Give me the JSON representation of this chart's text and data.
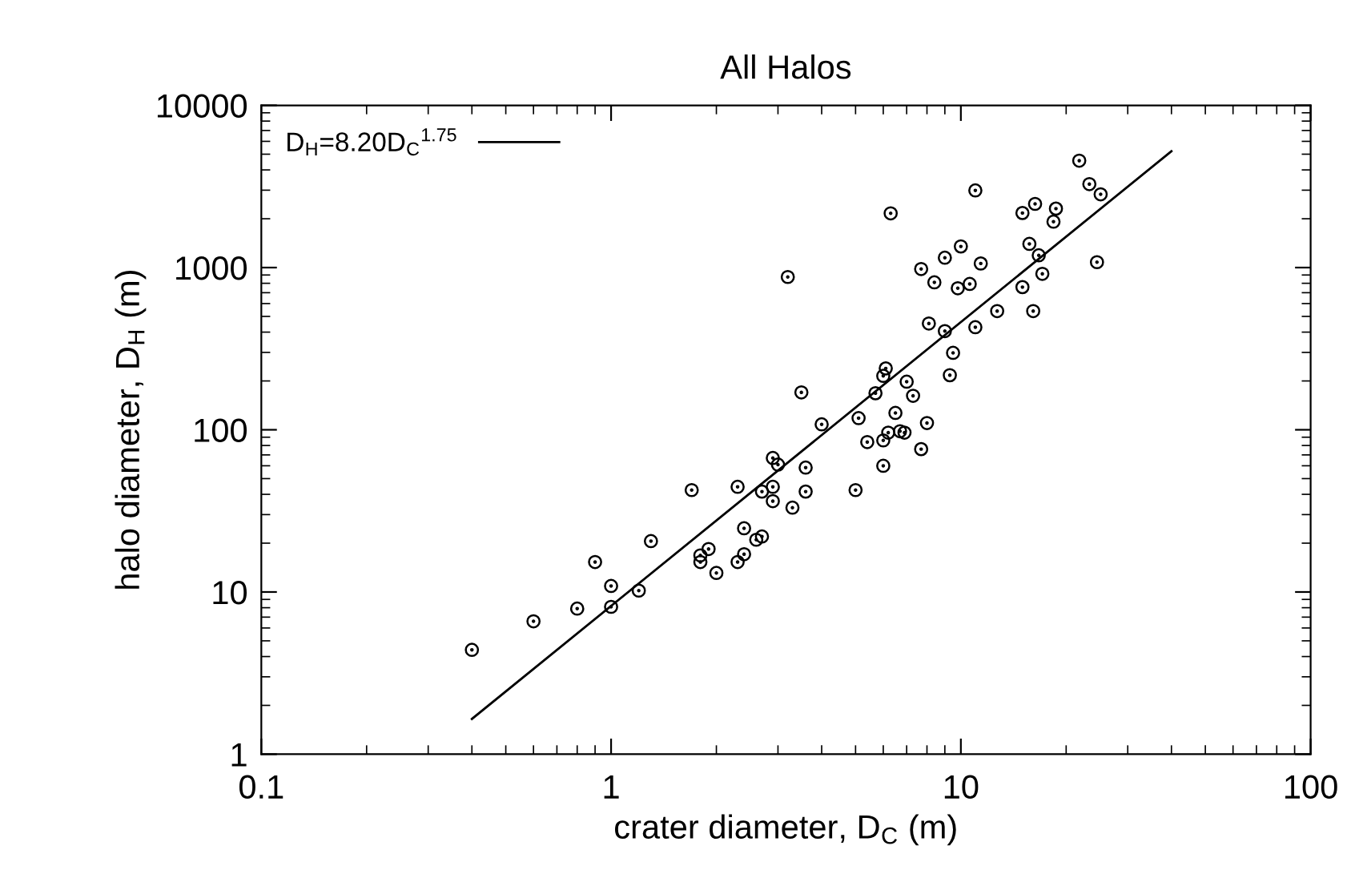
{
  "chart_data": {
    "type": "scatter",
    "title": "All Halos",
    "xlabel": "crater diameter, D$_{C}$ (m)",
    "ylabel": "halo diameter, D$_{H}$ (m)",
    "log": "xy",
    "xlim": [
      0.1,
      100
    ],
    "ylim": [
      1,
      10000
    ],
    "xticks": [
      0.1,
      1,
      10,
      100
    ],
    "yticks": [
      1,
      10,
      100,
      1000,
      10000
    ],
    "legend": "top left",
    "series": [
      {
        "color": "#000000",
        "marker": "circle",
        "x": [
          0.4,
          0.6,
          0.8,
          0.9,
          1.0,
          1.0,
          1.2,
          1.3,
          1.7,
          2.3,
          1.8,
          1.9,
          1.8,
          2.0,
          2.3,
          2.4,
          2.4,
          2.6,
          2.7,
          2.7,
          3.2,
          3.5,
          4.0,
          2.9,
          3.0,
          3.6,
          2.9,
          3.6,
          2.9,
          3.3,
          21.8,
          23.3,
          25.1,
          11.0,
          6.3,
          15.0,
          16.3,
          18.7,
          18.4,
          10.0,
          9.0,
          15.7,
          16.7,
          11.4,
          24.5,
          7.7,
          8.4,
          9.8,
          10.6,
          15.0,
          17.1,
          12.7,
          16.1,
          8.1,
          9.0,
          11.0,
          9.5,
          9.3,
          6.1,
          6.0,
          7.0,
          5.7,
          7.3,
          5.1,
          6.5,
          8.0,
          6.2,
          6.7,
          6.9,
          5.4,
          6.0,
          7.7,
          6.0,
          5.0
        ],
        "values": [
          4.4,
          6.6,
          7.9,
          15.3,
          10.9,
          8.1,
          10.2,
          20.6,
          42.5,
          44.5,
          16.8,
          18.4,
          15.3,
          13.1,
          15.3,
          17.1,
          24.7,
          21.0,
          22.0,
          41.6,
          875,
          170,
          108,
          67,
          61,
          58.5,
          44.5,
          41.6,
          36.3,
          33.1,
          4560,
          3270,
          2830,
          2990,
          2160,
          2170,
          2470,
          2310,
          1920,
          1350,
          1150,
          1400,
          1190,
          1060,
          1080,
          980,
          811,
          746,
          793,
          758,
          915,
          539,
          539,
          452,
          406,
          429,
          298,
          217,
          239,
          215,
          198,
          168,
          162,
          118,
          127,
          110,
          96,
          98,
          96,
          84,
          86,
          76,
          60,
          42.5
        ]
      },
      {
        "type": "line",
        "name": "D$_{H}$=8.20D$_{C}$$^{1.75}$",
        "color": "#000000",
        "marker": "none",
        "line_style": "solid",
        "x": [
          0.4,
          40
        ],
        "values": [
          1.65,
          5217
        ]
      }
    ]
  }
}
